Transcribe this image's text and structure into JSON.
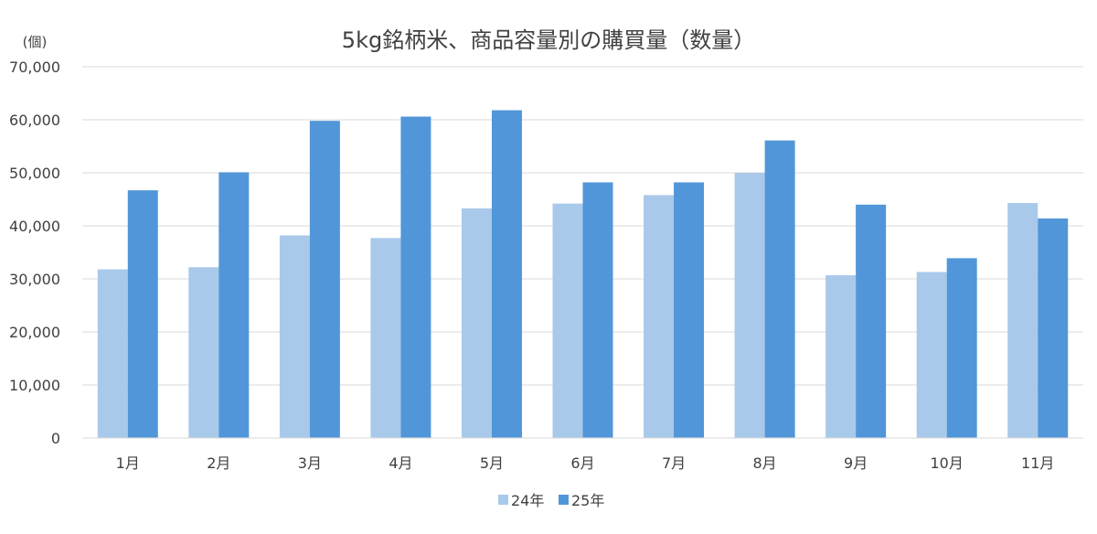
{
  "chart_data": {
    "type": "bar",
    "title": "5kg銘柄米、商品容量別の購買量（数量）",
    "ylabel": "(個)",
    "xlabel": "",
    "ylim": [
      0,
      70000
    ],
    "yticks": [
      0,
      10000,
      20000,
      30000,
      40000,
      50000,
      60000,
      70000
    ],
    "ytick_labels": [
      "0",
      "10,000",
      "20,000",
      "30,000",
      "40,000",
      "50,000",
      "60,000",
      "70,000"
    ],
    "grid": true,
    "legend_position": "bottom",
    "categories": [
      "1月",
      "2月",
      "3月",
      "4月",
      "5月",
      "6月",
      "7月",
      "8月",
      "9月",
      "10月",
      "11月"
    ],
    "series": [
      {
        "name": "24年",
        "color": "#a9c9ea",
        "values": [
          31800,
          32200,
          38200,
          37700,
          43300,
          44200,
          45800,
          50000,
          30700,
          31300,
          44300
        ]
      },
      {
        "name": "25年",
        "color": "#5196d8",
        "values": [
          46700,
          50100,
          59800,
          60600,
          61800,
          48200,
          48200,
          56100,
          44000,
          33900,
          41400
        ]
      }
    ]
  }
}
